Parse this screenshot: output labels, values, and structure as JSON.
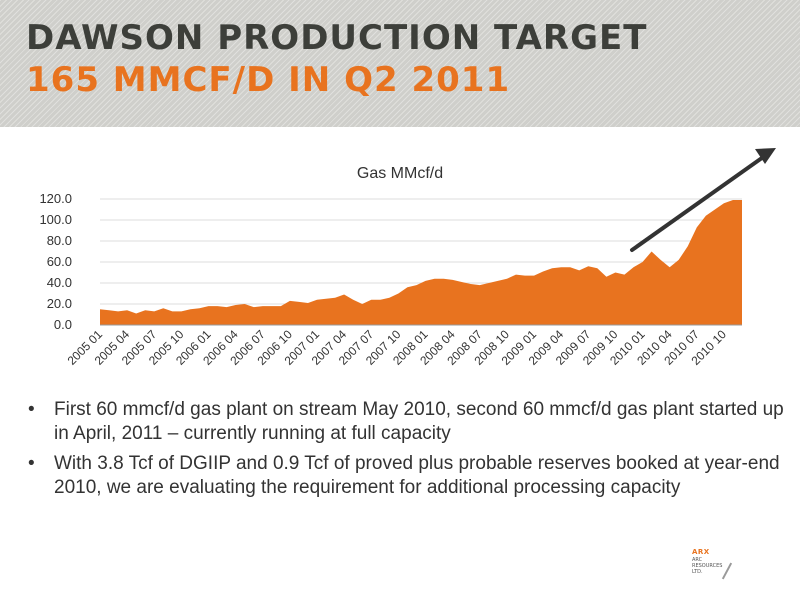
{
  "slide": {
    "title_line1": "DAWSON PRODUCTION TARGET",
    "title_line2": "165 MMCF/D IN Q2 2011",
    "bullets": [
      "First 60 mmcf/d gas plant on stream May 2010, second 60 mmcf/d gas plant started up in April, 2011 – currently running at full capacity",
      "With 3.8 Tcf of DGIIP and 0.9 Tcf of proved plus probable reserves booked at year-end 2010, we are evaluating the requirement for additional processing capacity"
    ],
    "bullet_symbol": "•",
    "logo": {
      "word": "ARX",
      "subtext": "ARC RESOURCES LTD."
    }
  },
  "colors": {
    "title_dark": "#3d3f3a",
    "title_accent": "#e8731f",
    "area_fill": "#e8731f",
    "arrow": "#333333"
  },
  "chart_data": {
    "type": "area",
    "title": "Gas MMcf/d",
    "xlabel": "",
    "ylabel": "",
    "ylim": [
      0,
      120
    ],
    "y_ticks": [
      "0.0",
      "20.0",
      "40.0",
      "60.0",
      "80.0",
      "100.0",
      "120.0"
    ],
    "x_tick_labels": [
      "2005 01",
      "2005 04",
      "2005 07",
      "2005 10",
      "2006 01",
      "2006 04",
      "2006 07",
      "2006 10",
      "2007 01",
      "2007 04",
      "2007 07",
      "2007 10",
      "2008 01",
      "2008 04",
      "2008 07",
      "2008 10",
      "2009 01",
      "2009 04",
      "2009 07",
      "2009 10",
      "2010 01",
      "2010 04",
      "2010 07",
      "2010 10"
    ],
    "grid": "horizontal",
    "legend": "none",
    "annotation": "upward trend arrow",
    "x": [
      "2005 01",
      "2005 02",
      "2005 03",
      "2005 04",
      "2005 05",
      "2005 06",
      "2005 07",
      "2005 08",
      "2005 09",
      "2005 10",
      "2005 11",
      "2005 12",
      "2006 01",
      "2006 02",
      "2006 03",
      "2006 04",
      "2006 05",
      "2006 06",
      "2006 07",
      "2006 08",
      "2006 09",
      "2006 10",
      "2006 11",
      "2006 12",
      "2007 01",
      "2007 02",
      "2007 03",
      "2007 04",
      "2007 05",
      "2007 06",
      "2007 07",
      "2007 08",
      "2007 09",
      "2007 10",
      "2007 11",
      "2007 12",
      "2008 01",
      "2008 02",
      "2008 03",
      "2008 04",
      "2008 05",
      "2008 06",
      "2008 07",
      "2008 08",
      "2008 09",
      "2008 10",
      "2008 11",
      "2008 12",
      "2009 01",
      "2009 02",
      "2009 03",
      "2009 04",
      "2009 05",
      "2009 06",
      "2009 07",
      "2009 08",
      "2009 09",
      "2009 10",
      "2009 11",
      "2009 12",
      "2010 01",
      "2010 02",
      "2010 03",
      "2010 04",
      "2010 05",
      "2010 06",
      "2010 07",
      "2010 08",
      "2010 09",
      "2010 10",
      "2010 11",
      "2010 12"
    ],
    "values": [
      15,
      14,
      13,
      14,
      11,
      14,
      13,
      16,
      13,
      13,
      15,
      16,
      18,
      18,
      17,
      19,
      20,
      17,
      18,
      18,
      18,
      23,
      22,
      21,
      24,
      25,
      26,
      29,
      24,
      20,
      24,
      24,
      26,
      30,
      36,
      38,
      42,
      44,
      44,
      43,
      41,
      39,
      38,
      40,
      42,
      44,
      48,
      47,
      47,
      51,
      54,
      55,
      55,
      52,
      56,
      54,
      46,
      50,
      48,
      55,
      60,
      70,
      62,
      55,
      62,
      75,
      93,
      104,
      110,
      116,
      119,
      119
    ]
  }
}
